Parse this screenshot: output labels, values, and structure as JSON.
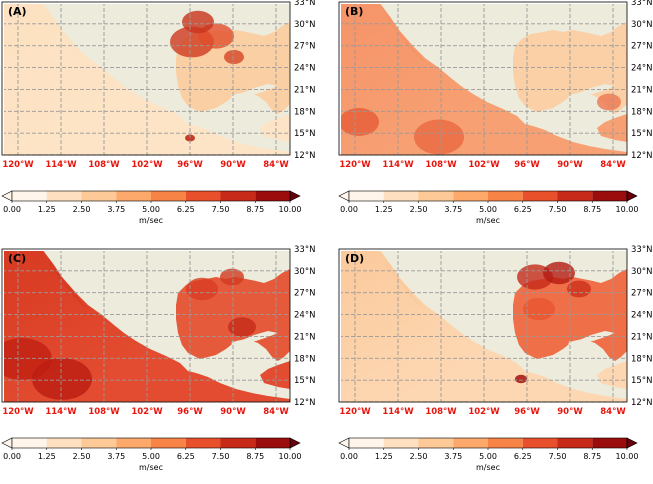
{
  "panels": [
    {
      "id": "A",
      "label": "(A)",
      "variant": "A"
    },
    {
      "id": "B",
      "label": "(B)",
      "variant": "B"
    },
    {
      "id": "C",
      "label": "(C)",
      "variant": "C"
    },
    {
      "id": "D",
      "label": "(D)",
      "variant": "D"
    }
  ],
  "lat_labels": [
    "33°N",
    "30°N",
    "27°N",
    "24°N",
    "21°N",
    "18°N",
    "15°N",
    "12°N"
  ],
  "lon_labels": [
    "120°W",
    "114°W",
    "108°W",
    "102°W",
    "96°W",
    "90°W",
    "84°W"
  ],
  "colorbar": {
    "ticks": [
      "0.00",
      "1.25",
      "2.50",
      "3.75",
      "5.00",
      "6.25",
      "7.50",
      "8.75",
      "10.00"
    ],
    "unit": "m/sec",
    "colors": [
      "#fff5eb",
      "#fee0c0",
      "#fdc996",
      "#fca96b",
      "#f78446",
      "#e8502b",
      "#c82a1a",
      "#9b0d0d",
      "#67000d"
    ]
  },
  "colors": {
    "land": "#ecebdc",
    "grid": "#999999",
    "lon_label": "#e8150d"
  }
}
